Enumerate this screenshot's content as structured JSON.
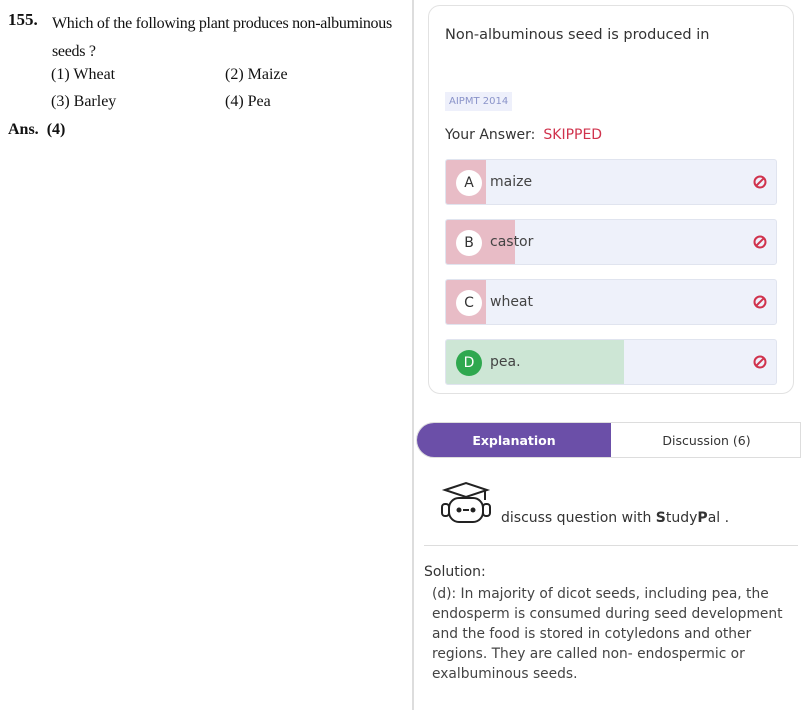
{
  "question": {
    "number": "155.",
    "text": "Which of the following plant produces non-albuminous seeds ?",
    "options": [
      {
        "label": "(1)",
        "text": "Wheat"
      },
      {
        "label": "(2)",
        "text": "Maize"
      },
      {
        "label": "(3)",
        "text": "Barley"
      },
      {
        "label": "(4)",
        "text": "Pea"
      }
    ],
    "answer_label": "Ans.",
    "answer": "(4)"
  },
  "card": {
    "question": "Non-albuminous seed is produced in",
    "tag": "AIPMT 2014",
    "your_answer_label": "Your Answer:",
    "your_answer": "SKIPPED",
    "options": [
      {
        "letter": "A",
        "text": "maize"
      },
      {
        "letter": "B",
        "text": "castor"
      },
      {
        "letter": "C",
        "text": "wheat"
      },
      {
        "letter": "D",
        "text": "pea."
      }
    ]
  },
  "tabs": [
    "Explanation",
    "Discussion (6)"
  ],
  "studypal": {
    "text": "discuss question with",
    "brand": [
      "S",
      "tudy",
      "P",
      "al ."
    ]
  },
  "solution": {
    "title": "Solution:",
    "text": "(d): In majority of dicot seeds, including pea, the endosperm is consumed during seed development and the food is stored in cotyledons and other regions. They are called non- endospermic or exalbuminous seeds."
  }
}
